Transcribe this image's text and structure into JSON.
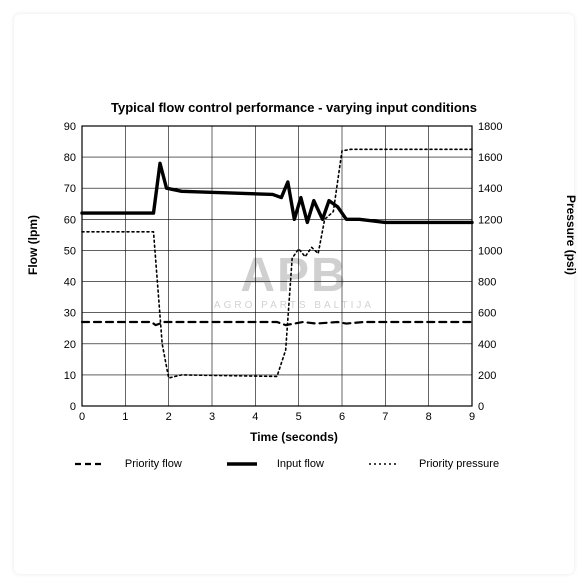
{
  "chart": {
    "type": "line",
    "title": "Typical flow control performance - varying input conditions",
    "xlabel": "Time (seconds)",
    "ylabel_left": "Flow (lpm)",
    "ylabel_right": "Pressure (psi)",
    "xlim": [
      0,
      9
    ],
    "xtick_step": 1,
    "xtick_labels": [
      "0",
      "1",
      "2",
      "3",
      "4",
      "5",
      "6",
      "7",
      "8",
      "9"
    ],
    "ylim_left": [
      0,
      90
    ],
    "ytick_left_step": 10,
    "ytick_left_labels": [
      "0",
      "10",
      "20",
      "30",
      "40",
      "50",
      "60",
      "70",
      "80",
      "90"
    ],
    "ylim_right": [
      0,
      1800
    ],
    "ytick_right_step": 200,
    "ytick_right_labels": [
      "0",
      "200",
      "400",
      "600",
      "800",
      "1000",
      "1200",
      "1400",
      "1600",
      "1800"
    ],
    "grid_color": "#000000",
    "grid_stroke": 0.6,
    "border_color": "#000000",
    "border_stroke": 1.2,
    "background_color": "#ffffff",
    "tick_fontsize": 11,
    "label_fontsize": 12,
    "title_fontsize": 13,
    "series": {
      "priority_flow": {
        "label": "Priority flow",
        "style": "dashed",
        "dash": "7,5",
        "width": 2.2,
        "color": "#000000",
        "axis": "left",
        "points": [
          [
            0,
            27
          ],
          [
            1.6,
            27
          ],
          [
            1.7,
            26
          ],
          [
            1.9,
            27
          ],
          [
            4.5,
            27
          ],
          [
            4.7,
            26
          ],
          [
            5.1,
            27
          ],
          [
            5.4,
            26.5
          ],
          [
            5.9,
            27
          ],
          [
            6.1,
            26.5
          ],
          [
            6.5,
            27
          ],
          [
            9,
            27
          ]
        ]
      },
      "input_flow": {
        "label": "Input flow",
        "style": "solid",
        "width": 3.4,
        "color": "#000000",
        "axis": "left",
        "points": [
          [
            0,
            62
          ],
          [
            1.5,
            62
          ],
          [
            1.65,
            62
          ],
          [
            1.8,
            78
          ],
          [
            1.95,
            70
          ],
          [
            2.3,
            69
          ],
          [
            4.4,
            68
          ],
          [
            4.6,
            67
          ],
          [
            4.75,
            72
          ],
          [
            4.9,
            60
          ],
          [
            5.05,
            67
          ],
          [
            5.2,
            59
          ],
          [
            5.35,
            66
          ],
          [
            5.55,
            60
          ],
          [
            5.7,
            66
          ],
          [
            5.9,
            64
          ],
          [
            6.1,
            60
          ],
          [
            6.4,
            60
          ],
          [
            7,
            59
          ],
          [
            9,
            59
          ]
        ]
      },
      "priority_pressure": {
        "label": "Priority pressure",
        "style": "dotted",
        "dash": "2,3",
        "width": 1.6,
        "color": "#000000",
        "axis": "right",
        "points": [
          [
            0,
            1120
          ],
          [
            1.55,
            1120
          ],
          [
            1.65,
            1120
          ],
          [
            1.85,
            400
          ],
          [
            2.0,
            180
          ],
          [
            2.3,
            200
          ],
          [
            4.5,
            190
          ],
          [
            4.7,
            360
          ],
          [
            4.85,
            950
          ],
          [
            5.0,
            1010
          ],
          [
            5.15,
            960
          ],
          [
            5.3,
            1020
          ],
          [
            5.45,
            980
          ],
          [
            5.6,
            1200
          ],
          [
            5.8,
            1250
          ],
          [
            6.0,
            1640
          ],
          [
            6.2,
            1650
          ],
          [
            9,
            1650
          ]
        ]
      }
    },
    "legend": {
      "items": [
        "priority_flow",
        "input_flow",
        "priority_pressure"
      ]
    },
    "watermark": "APB",
    "watermark_sub": "AGRO PARTS BALTIJA"
  }
}
